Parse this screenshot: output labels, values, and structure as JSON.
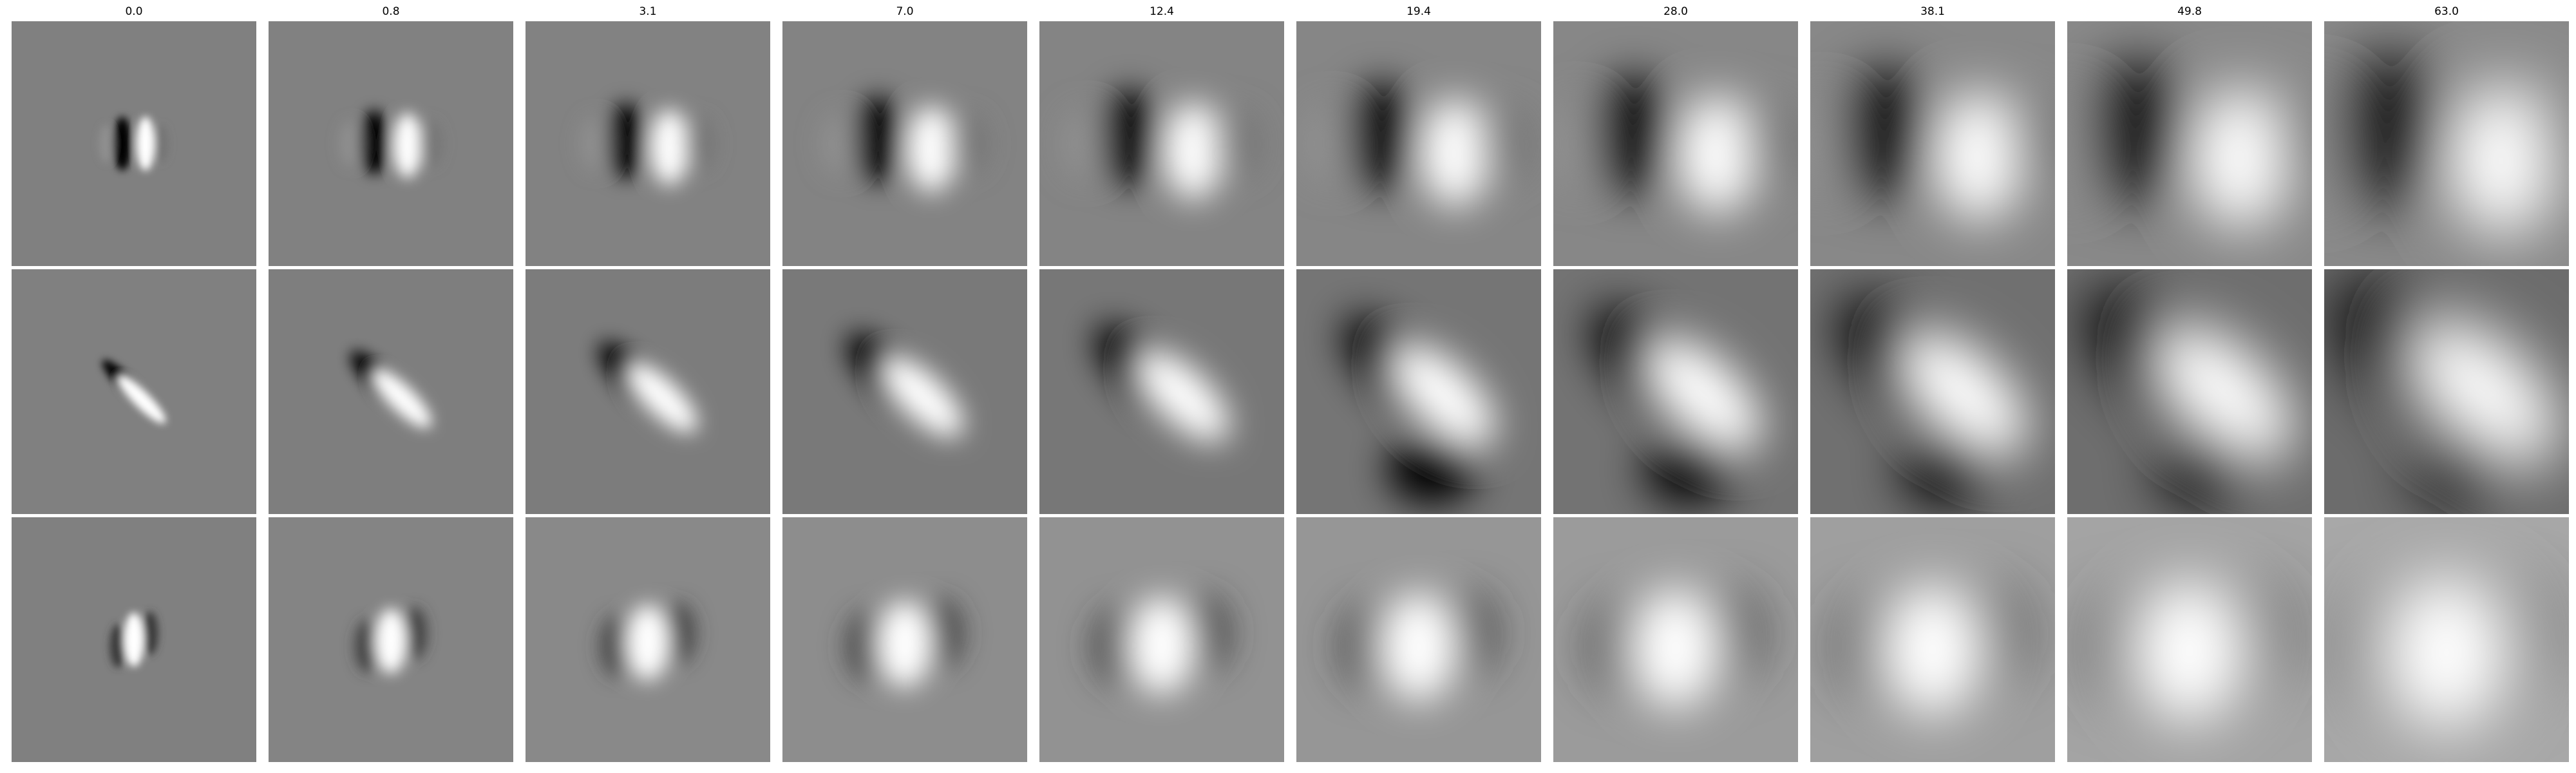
{
  "column_titles": [
    "0.0",
    "0.8",
    "3.1",
    "7.0",
    "12.4",
    "19.4",
    "28.0",
    "38.1",
    "49.8",
    "63.0"
  ],
  "rows": [
    {
      "orientation": "vertical",
      "angle_deg": 0,
      "polarity": "dark-left-bright-right"
    },
    {
      "orientation": "diagonal",
      "angle_deg": 45,
      "polarity": "dark-upper-left-bright-lower-right"
    },
    {
      "orientation": "vertical",
      "angle_deg": 0,
      "polarity": "bright-center-dark-sides"
    }
  ],
  "colormap": "gray",
  "colors": {
    "background": "#ffffff",
    "mid_gray": "#808080",
    "black": "#000000",
    "white": "#ffffff"
  }
}
